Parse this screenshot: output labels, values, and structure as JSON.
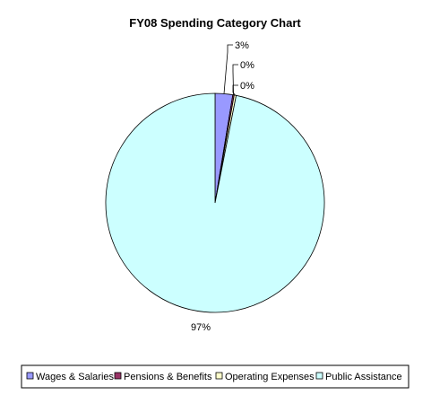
{
  "chart_data": {
    "type": "pie",
    "title": "FY08 Spending Category Chart",
    "categories": [
      "Wages & Salaries",
      "Pensions & Benefits",
      "Operating Expenses",
      "Public Assistance"
    ],
    "values": [
      2.6,
      0.2,
      0.3,
      96.9
    ],
    "labels": [
      "3%",
      "0%",
      "0%",
      "97%"
    ],
    "colors": [
      "#9999FF",
      "#993366",
      "#FFFFCC",
      "#CCFFFF"
    ],
    "legend_position": "bottom",
    "start_angle_deg": 90,
    "direction": "clockwise"
  }
}
